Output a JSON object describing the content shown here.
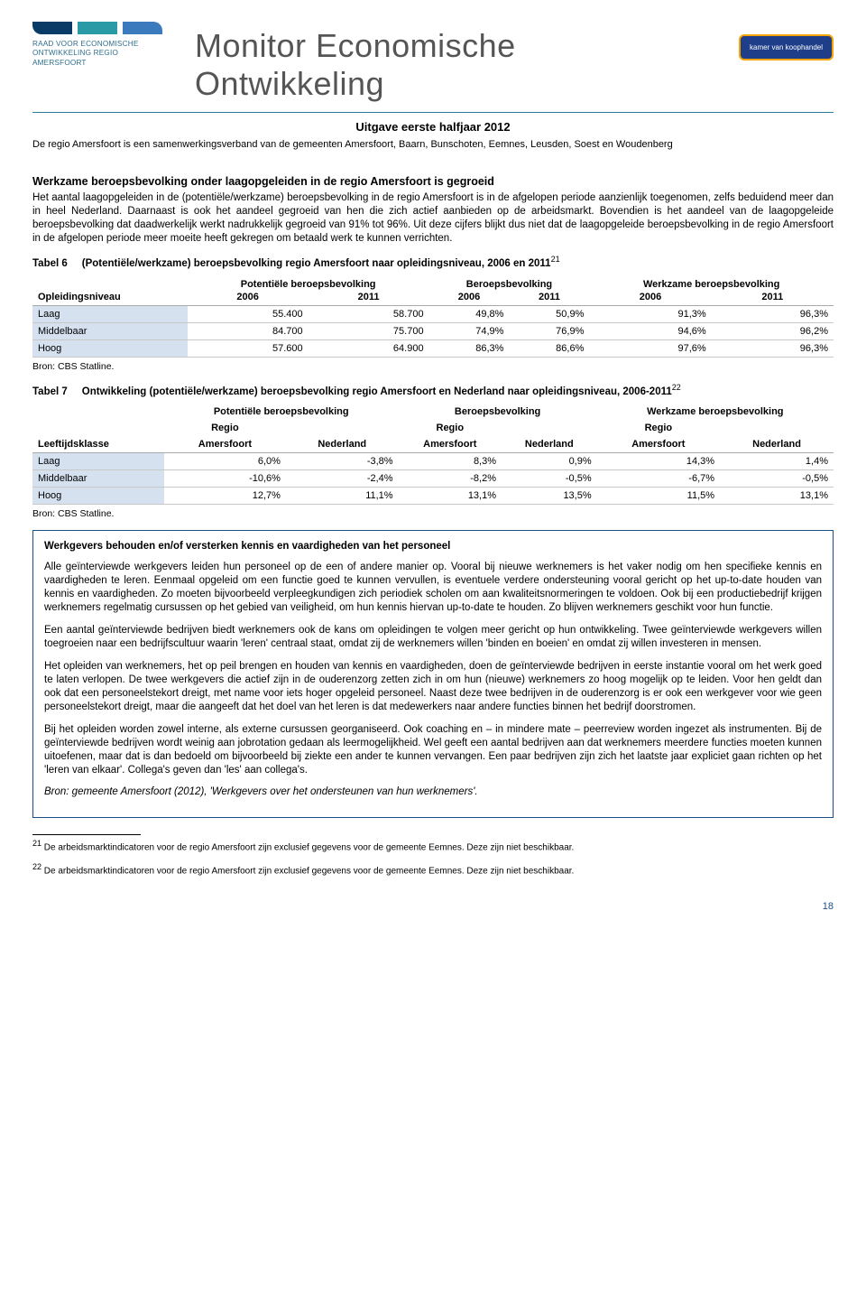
{
  "colors": {
    "accent_blue": "#1b4f8a",
    "teal": "#2e7c9b",
    "logo_navy": "#0a3a66",
    "logo_teal": "#2a9ba6",
    "logo_blue": "#3b7bbd",
    "row_label_bg": "#d6e1f0",
    "grid": "#c8c8c8"
  },
  "header": {
    "logo_text": "RAAD VOOR ECONOMISCHE\nONTWIKKELING REGIO\nAMERSFOORT",
    "title": "Monitor Economische Ontwikkeling",
    "badge": "kamer van koophandel"
  },
  "subtitle": "Uitgave eerste halfjaar 2012",
  "intro": "De regio Amersfoort is een samenwerkingsverband van de gemeenten Amersfoort, Baarn, Bunschoten, Eemnes, Leusden, Soest en Woudenberg",
  "section": {
    "heading": "Werkzame beroepsbevolking onder laagopgeleiden in de regio Amersfoort is gegroeid",
    "body": "Het aantal laagopgeleiden in de (potentiële/werkzame) beroepsbevolking in de regio Amersfoort is in de afgelopen periode aanzienlijk toegenomen, zelfs beduidend meer dan in heel Nederland. Daarnaast is ook het aandeel gegroeid van hen die zich actief aanbieden op de arbeidsmarkt. Bovendien is het aandeel van de laagopgeleide beroepsbevolking dat daadwerkelijk werkt nadrukkelijk gegroeid van 91% tot 96%. Uit deze cijfers blijkt dus niet dat de laagopgeleide beroepsbevolking in de regio Amersfoort in de afgelopen periode meer moeite heeft gekregen om betaald werk te kunnen verrichten."
  },
  "table6": {
    "caption_label": "Tabel 6",
    "caption": "(Potentiële/werkzame) beroepsbevolking regio Amersfoort naar opleidingsniveau, 2006 en 2011",
    "sup": "21",
    "groups": [
      "Potentiële beroepsbevolking",
      "Beroepsbevolking",
      "Werkzame beroepsbevolking"
    ],
    "sub": [
      "2006",
      "2011",
      "2006",
      "2011",
      "2006",
      "2011"
    ],
    "rowhdr": "Opleidingsniveau",
    "rows": [
      {
        "label": "Laag",
        "cells": [
          "55.400",
          "58.700",
          "49,8%",
          "50,9%",
          "91,3%",
          "96,3%"
        ]
      },
      {
        "label": "Middelbaar",
        "cells": [
          "84.700",
          "75.700",
          "74,9%",
          "76,9%",
          "94,6%",
          "96,2%"
        ]
      },
      {
        "label": "Hoog",
        "cells": [
          "57.600",
          "64.900",
          "86,3%",
          "86,6%",
          "97,6%",
          "96,3%"
        ]
      }
    ],
    "source": "Bron: CBS Statline."
  },
  "table7": {
    "caption_label": "Tabel 7",
    "caption": "Ontwikkeling (potentiële/werkzame) beroepsbevolking regio Amersfoort en Nederland naar opleidingsniveau, 2006-2011",
    "sup": "22",
    "groups": [
      "Potentiële beroepsbevolking",
      "Beroepsbevolking",
      "Werkzame beroepsbevolking"
    ],
    "sub1": [
      "Regio",
      "",
      "Regio",
      "",
      "Regio",
      ""
    ],
    "sub2": [
      "Amersfoort",
      "Nederland",
      "Amersfoort",
      "Nederland",
      "Amersfoort",
      "Nederland"
    ],
    "rowhdr": "Leeftijdsklasse",
    "rows": [
      {
        "label": "Laag",
        "cells": [
          "6,0%",
          "-3,8%",
          "8,3%",
          "0,9%",
          "14,3%",
          "1,4%"
        ]
      },
      {
        "label": "Middelbaar",
        "cells": [
          "-10,6%",
          "-2,4%",
          "-8,2%",
          "-0,5%",
          "-6,7%",
          "-0,5%"
        ]
      },
      {
        "label": "Hoog",
        "cells": [
          "12,7%",
          "11,1%",
          "13,1%",
          "13,5%",
          "11,5%",
          "13,1%"
        ]
      }
    ],
    "source": "Bron: CBS Statline."
  },
  "box": {
    "title": "Werkgevers behouden en/of versterken kennis en vaardigheden van het personeel",
    "p1": "Alle geïnterviewde werkgevers leiden hun personeel op de een of andere manier op. Vooral bij nieuwe werknemers is het vaker nodig om hen specifieke kennis en vaardigheden te leren. Eenmaal opgeleid om een functie goed te kunnen vervullen, is eventuele verdere ondersteuning vooral gericht op het up-to-date houden van kennis en vaardigheden. Zo moeten bijvoorbeeld verpleegkundigen zich periodiek scholen om aan kwaliteitsnormeringen te voldoen. Ook bij een productiebedrijf krijgen werknemers regelmatig cursussen op het gebied van veiligheid, om hun kennis hiervan up-to-date te houden. Zo blijven werknemers geschikt voor hun functie.",
    "p2": "Een aantal geïnterviewde bedrijven biedt werknemers ook de kans om opleidingen te volgen meer gericht op hun ontwikkeling. Twee geïnterviewde werkgevers willen toegroeien naar een bedrijfscultuur waarin 'leren' centraal staat, omdat zij de werknemers willen 'binden en boeien' en omdat zij willen investeren in mensen.",
    "p3": "Het opleiden van werknemers, het op peil brengen en houden van kennis en vaardigheden, doen de geïnterviewde bedrijven in eerste instantie vooral om het werk goed te laten verlopen. De twee werkgevers die actief zijn in de ouderenzorg zetten zich in om hun (nieuwe) werknemers zo hoog mogelijk op te leiden. Voor hen geldt dan ook dat een personeelstekort dreigt, met name voor iets hoger opgeleid personeel. Naast deze twee bedrijven in de ouderenzorg is er ook een werkgever voor wie geen personeelstekort dreigt, maar die aangeeft dat het doel van het leren is dat medewerkers naar andere functies binnen het bedrijf doorstromen.",
    "p4": "Bij het opleiden worden zowel interne, als externe cursussen georganiseerd. Ook coaching en – in mindere mate – peerreview worden ingezet als instrumenten. Bij de geïnterviewde bedrijven wordt weinig aan jobrotation gedaan als leermogelijkheid. Wel geeft een aantal bedrijven aan dat werknemers meerdere functies moeten kunnen uitoefenen, maar dat is dan bedoeld om bijvoorbeeld bij ziekte een ander te kunnen vervangen. Een paar bedrijven zijn zich het laatste jaar expliciet gaan richten op het 'leren van elkaar'. Collega's geven dan 'les' aan collega's.",
    "bron": "Bron: gemeente Amersfoort (2012), 'Werkgevers over het ondersteunen van hun werknemers'."
  },
  "footnotes": {
    "fn21_num": "21",
    "fn21": "De arbeidsmarktindicatoren voor de regio Amersfoort zijn exclusief gegevens voor de gemeente Eemnes. Deze zijn niet beschikbaar.",
    "fn22_num": "22",
    "fn22": "De arbeidsmarktindicatoren voor de regio Amersfoort zijn exclusief gegevens voor de gemeente Eemnes. Deze zijn niet beschikbaar."
  },
  "page_number": "18"
}
